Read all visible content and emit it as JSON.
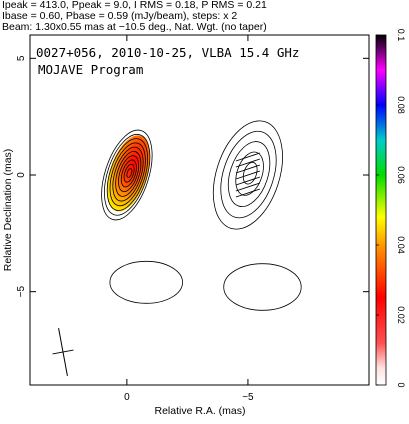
{
  "header": {
    "line1": "Ipeak = 413.0, Ppeak = 9.0, I RMS = 0.18, P RMS = 0.21",
    "line2": "Ibase = 0.60, Pbase = 0.59 (mJy/beam), steps: x 2",
    "line3": "Beam: 1.30x0.55 mas at −10.5 deg., Nat. Wgt. (no taper)"
  },
  "plot_text": {
    "title": "0027+056, 2010-10-25, VLBA 15.4 GHz",
    "subtitle": "MOJAVE Program"
  },
  "chart_data": {
    "type": "contour",
    "xlabel": "Relative R.A. (mas)",
    "ylabel": "Relative Declination (mas)",
    "xlim": [
      4,
      -10
    ],
    "ylim": [
      -9,
      6
    ],
    "x_ticks": [
      {
        "value": 0,
        "label": "0"
      },
      {
        "value": -5,
        "label": "−5"
      }
    ],
    "y_ticks": [
      {
        "value": 5,
        "label": "5"
      },
      {
        "value": 0,
        "label": "0"
      },
      {
        "value": -5,
        "label": "−5"
      }
    ],
    "colorbar": {
      "min": 0,
      "max": 0.1,
      "ticks": [
        {
          "value": 0,
          "label": "0"
        },
        {
          "value": 0.02,
          "label": "0.02"
        },
        {
          "value": 0.04,
          "label": "0.04"
        },
        {
          "value": 0.06,
          "label": "0.06"
        },
        {
          "value": 0.08,
          "label": "0.08"
        },
        {
          "value": 0.1,
          "label": "0.1"
        }
      ]
    },
    "components": [
      {
        "panel": "total-intensity",
        "x": 0.0,
        "y": 0.0,
        "sx": 0.9,
        "sy": 2.0,
        "levels": 10
      },
      {
        "panel": "polarization",
        "x": -5.0,
        "y": 0.0,
        "sx": 1.3,
        "sy": 2.4,
        "levels": 5
      }
    ],
    "beam": {
      "major_mas": 1.3,
      "minor_mas": 0.55,
      "pa_deg": -10.5
    },
    "colors": {
      "frame": "#000000",
      "contour": "#000000"
    }
  }
}
